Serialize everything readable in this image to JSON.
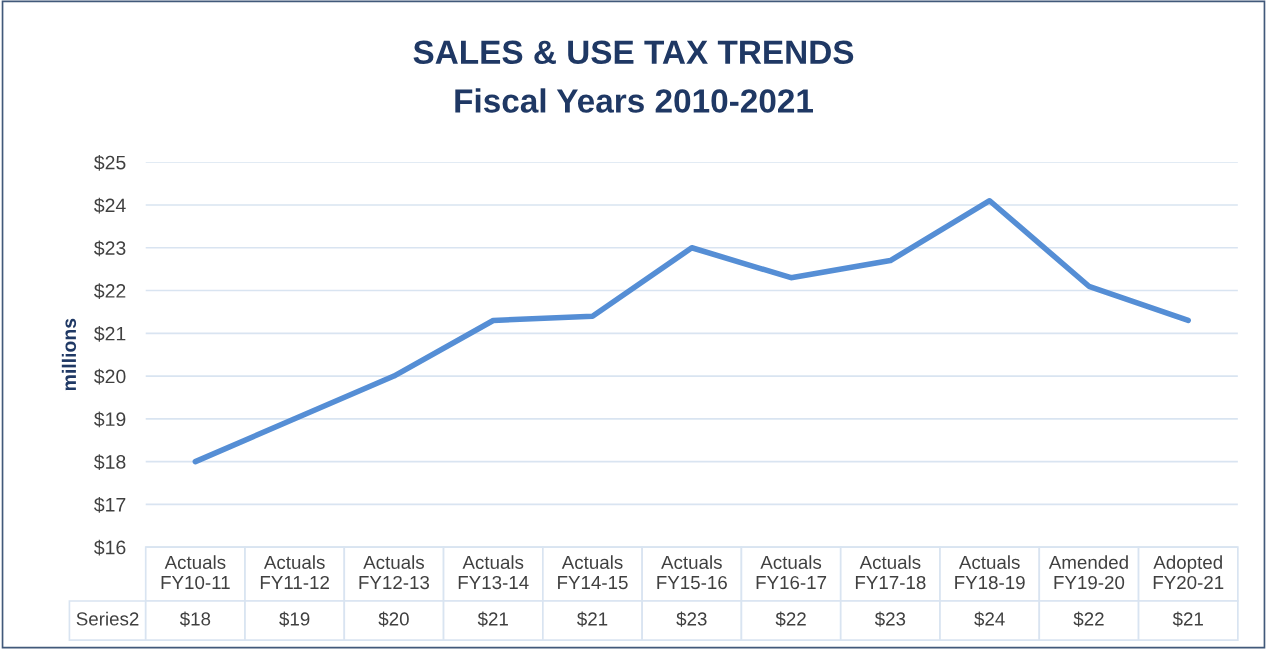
{
  "chart_data": {
    "type": "line",
    "title": "SALES & USE TAX TRENDS",
    "subtitle": "Fiscal Years 2010-2021",
    "ylabel": "millions",
    "categories": [
      "Actuals\nFY10-11",
      "Actuals\nFY11-12",
      "Actuals\nFY12-13",
      "Actuals\nFY13-14",
      "Actuals\nFY14-15",
      "Actuals\nFY15-16",
      "Actuals\nFY16-17",
      "Actuals\nFY17-18",
      "Actuals\nFY18-19",
      "Amended\nFY19-20",
      "Adopted\nFY20-21"
    ],
    "series": [
      {
        "name": "Series2",
        "color": "#558ed5",
        "values": [
          18.0,
          19.0,
          20.0,
          21.3,
          21.4,
          23.0,
          22.3,
          22.7,
          24.1,
          22.1,
          21.3
        ],
        "value_labels": [
          "$18",
          "$19",
          "$20",
          "$21",
          "$21",
          "$23",
          "$22",
          "$23",
          "$24",
          "$22",
          "$21"
        ]
      }
    ],
    "ylim": [
      16,
      25
    ],
    "yticks": [
      {
        "value": 16,
        "label": "$16"
      },
      {
        "value": 17,
        "label": "$17"
      },
      {
        "value": 18,
        "label": "$18"
      },
      {
        "value": 19,
        "label": "$19"
      },
      {
        "value": 20,
        "label": "$20"
      },
      {
        "value": 21,
        "label": "$21"
      },
      {
        "value": 22,
        "label": "$22"
      },
      {
        "value": 23,
        "label": "$23"
      },
      {
        "value": 24,
        "label": "$24"
      },
      {
        "value": 25,
        "label": "$25"
      }
    ],
    "grid": "y",
    "legend": false,
    "marker": "none",
    "line_style": "solid"
  }
}
